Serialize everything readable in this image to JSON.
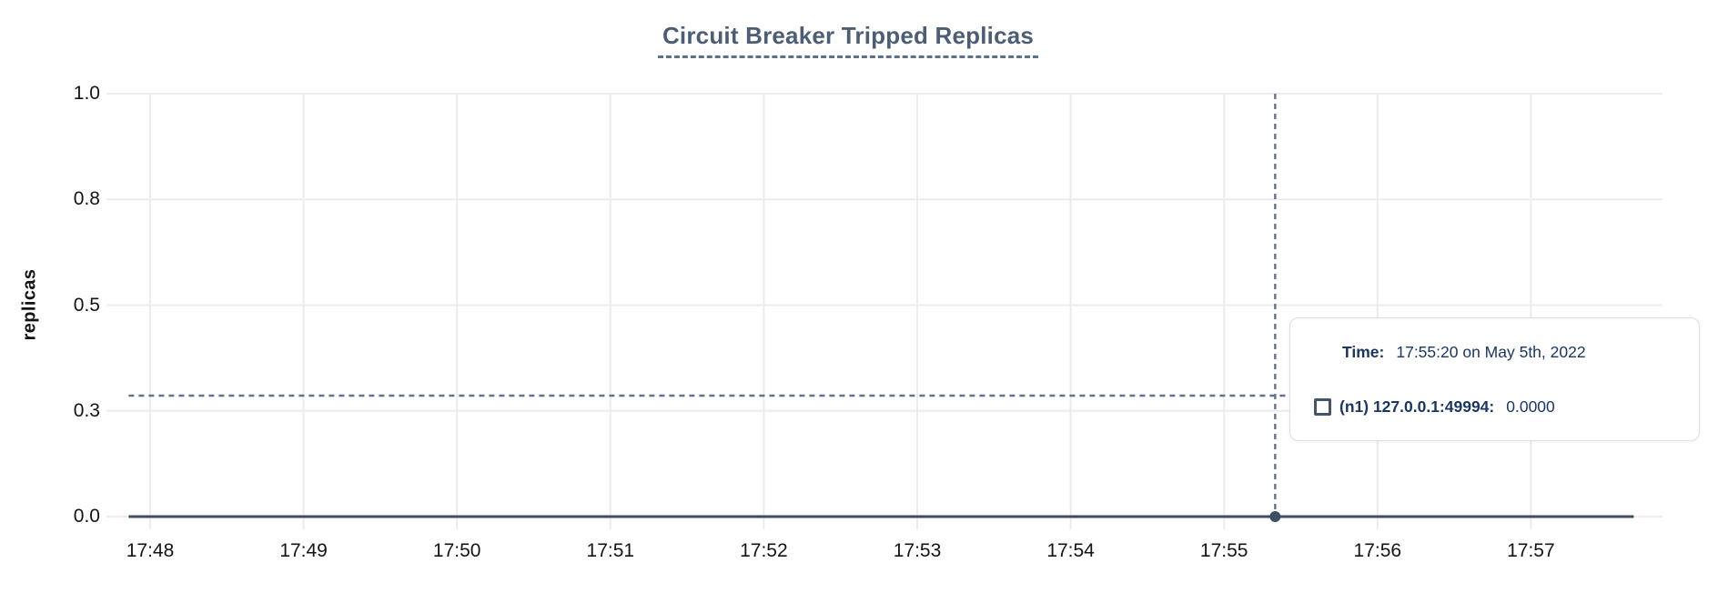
{
  "chart_data": {
    "type": "line",
    "title": "Circuit Breaker Tripped Replicas",
    "ylabel": "replicas",
    "xlabel": "",
    "ylim": [
      0,
      1
    ],
    "grid": true,
    "legend_position": "tooltip-overlay",
    "x_ticks": [
      {
        "label": "17:48",
        "minute": 0
      },
      {
        "label": "17:49",
        "minute": 1
      },
      {
        "label": "17:50",
        "minute": 2
      },
      {
        "label": "17:51",
        "minute": 3
      },
      {
        "label": "17:52",
        "minute": 4
      },
      {
        "label": "17:53",
        "minute": 5
      },
      {
        "label": "17:54",
        "minute": 6
      },
      {
        "label": "17:55",
        "minute": 7
      },
      {
        "label": "17:56",
        "minute": 8
      },
      {
        "label": "17:57",
        "minute": 9
      }
    ],
    "y_ticks": [
      {
        "label": "0.0",
        "value": 0
      },
      {
        "label": "0.3",
        "value": 0.25
      },
      {
        "label": "0.5",
        "value": 0.5
      },
      {
        "label": "0.8",
        "value": 0.75
      },
      {
        "label": "1.0",
        "value": 1
      }
    ],
    "series": [
      {
        "name": "(n1) 127.0.0.1:49994",
        "color": "#3e4e63",
        "points": [
          {
            "minute": -0.14,
            "value": 0
          },
          {
            "minute": 9.67,
            "value": 0
          }
        ]
      }
    ],
    "cursor": {
      "time_label": "17:55:20",
      "minute": 7.333,
      "hover_value": 0.286,
      "point": {
        "minute": 7.333,
        "value": 0
      }
    }
  },
  "tooltip": {
    "time_label": "Time:",
    "time_value": "17:55:20 on May 5th, 2022",
    "series_label": "(n1) 127.0.0.1:49994:",
    "series_value": "0.0000"
  },
  "colors": {
    "title": "#4d5e74",
    "title_underline": "#5d7089",
    "grid": "#ececec",
    "axis_text": "#141414",
    "series_line": "#3e4e63",
    "crosshair": "#64748b",
    "tooltip_text": "#1d3660",
    "tooltip_border": "#dcdfe4",
    "legend_marker_border": "#44546a"
  }
}
